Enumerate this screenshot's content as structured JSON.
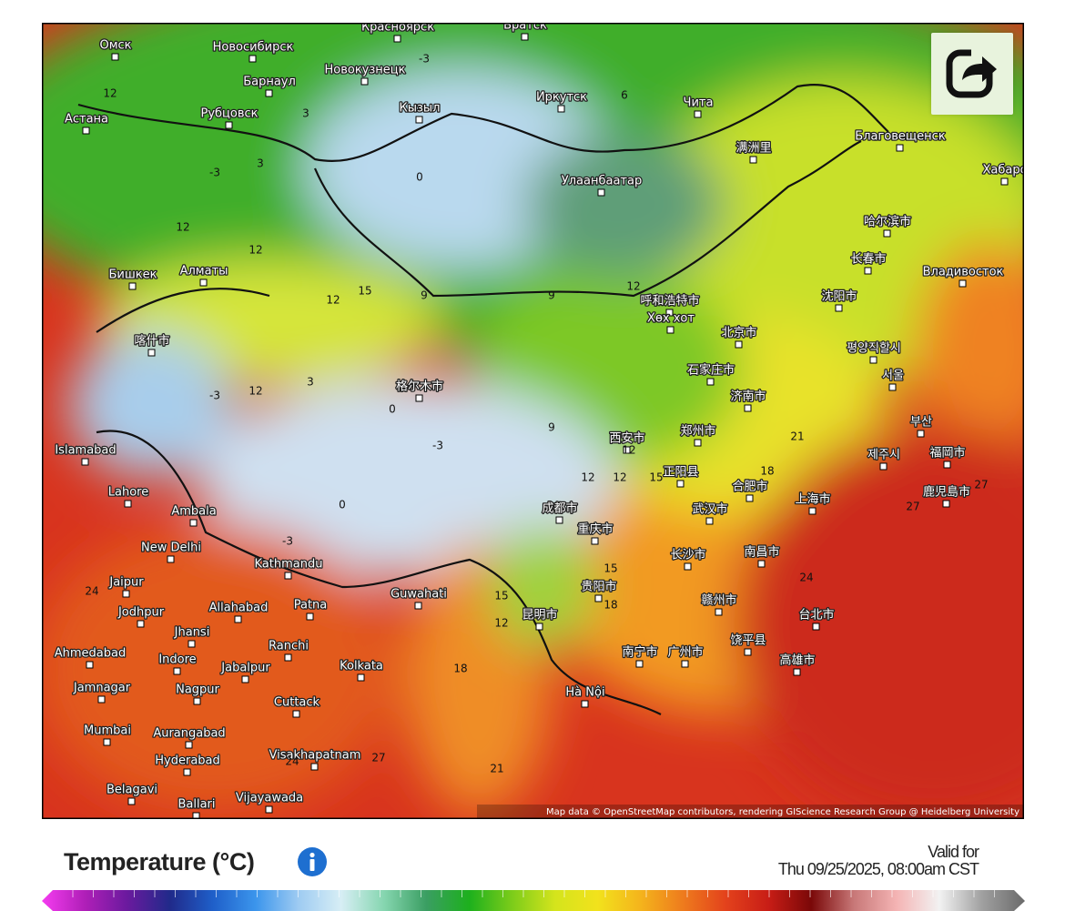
{
  "map": {
    "cities": [
      "Омск",
      "Новосибирск",
      "Красноярск",
      "Братск",
      "Барнаул",
      "Новокузнецк",
      "Рубцовск",
      "Астана",
      "Кызыл",
      "Иркутск",
      "Чита",
      "Благовещенск",
      "Хабаро",
      "满洲里",
      "Улаанбаатар",
      "哈尔滨市",
      "长春市",
      "Владивосток",
      "沈阳市",
      "呼和浩特市",
      "Хөх хот",
      "北京市",
      "평양직할시",
      "서울",
      "石家庄市",
      "济南市",
      "부산",
      "제주시",
      "福岡市",
      "鹿児島市",
      "Бишкек",
      "Алматы",
      "喀什市",
      "格尔木市",
      "西安市",
      "郑州市",
      "正阳县",
      "合肥市",
      "上海市",
      "Islamabad",
      "Lahore",
      "Ambala",
      "New Delhi",
      "成都市",
      "重庆市",
      "武汉市",
      "Kathmandu",
      "Guwahati",
      "Jaipur",
      "Jodhpur",
      "Allahabad",
      "Patna",
      "长沙市",
      "南昌市",
      "贵阳市",
      "昆明市",
      "赣州市",
      "Jhansi",
      "Ranchi",
      "Ahmedabad",
      "Indore",
      "Jabalpur",
      "Kolkata",
      "台北市",
      "南宁市",
      "广州市",
      "饶平县",
      "高雄市",
      "Jamnagar",
      "Nagpur",
      "Hà Nội",
      "Cuttack",
      "Mumbai",
      "Aurangabad",
      "Hyderabad",
      "Visakhapatnam",
      "Belagavi",
      "Ballari",
      "Vijayawada"
    ],
    "contour_labels": [
      12,
      -3,
      3,
      6,
      3,
      0,
      -3,
      12,
      12,
      12,
      15,
      12,
      9,
      -3,
      3,
      0,
      -3,
      12,
      9,
      12,
      15,
      21,
      18,
      24,
      27,
      27,
      24,
      21,
      18,
      15,
      12,
      9,
      12,
      0,
      -3,
      27,
      24,
      18,
      15,
      12
    ],
    "attribution": "Map data © OpenStreetMap contributors, rendering GIScience Research Group @ Heidelberg University"
  },
  "legend": {
    "title": "Temperature (°C)",
    "valid_label": "Valid for",
    "valid_time": "Thu 09/25/2025, 08:00am CST"
  }
}
